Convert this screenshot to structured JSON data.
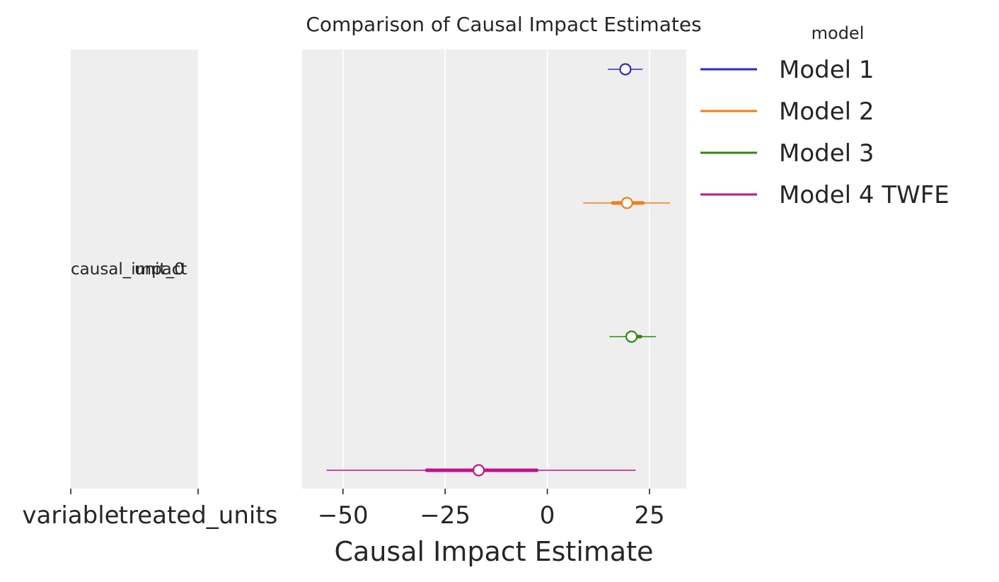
{
  "chart_data": {
    "type": "forest",
    "title": "Comparison of Causal Impact Estimates",
    "xlabel": "Causal Impact Estimate",
    "xlim": [
      -60,
      34
    ],
    "xticks": [
      -50,
      -25,
      0,
      25
    ],
    "xtick_labels": [
      "−50",
      "−25",
      "0",
      "25"
    ],
    "grid": true,
    "label_columns": [
      {
        "header": "variable",
        "value": "causal_impact"
      },
      {
        "header": "treated_units",
        "value": "unit_0"
      }
    ],
    "legend": {
      "title": "model",
      "placement": "outside-right",
      "entries": [
        "Model 1",
        "Model 2",
        "Model 3",
        "Model 4 TWFE"
      ]
    },
    "series": [
      {
        "name": "Model 1",
        "color": "#2a2ad4",
        "hdi_low": 14.8,
        "hdi_high": 23.3,
        "iqr_low": 18.4,
        "iqr_high": 19.8,
        "point": 19.1
      },
      {
        "name": "Model 2",
        "color": "#f07d18",
        "hdi_low": 8.8,
        "hdi_high": 30.0,
        "iqr_low": 16.0,
        "iqr_high": 23.4,
        "point": 19.5
      },
      {
        "name": "Model 3",
        "color": "#2e8a0e",
        "hdi_low": 15.2,
        "hdi_high": 26.6,
        "iqr_low": 20.0,
        "iqr_high": 22.8,
        "point": 20.6
      },
      {
        "name": "Model 4 TWFE",
        "color": "#c0128f",
        "hdi_low": -54.0,
        "hdi_high": 21.6,
        "iqr_low": -29.5,
        "iqr_high": -2.6,
        "point": -16.8
      }
    ]
  }
}
